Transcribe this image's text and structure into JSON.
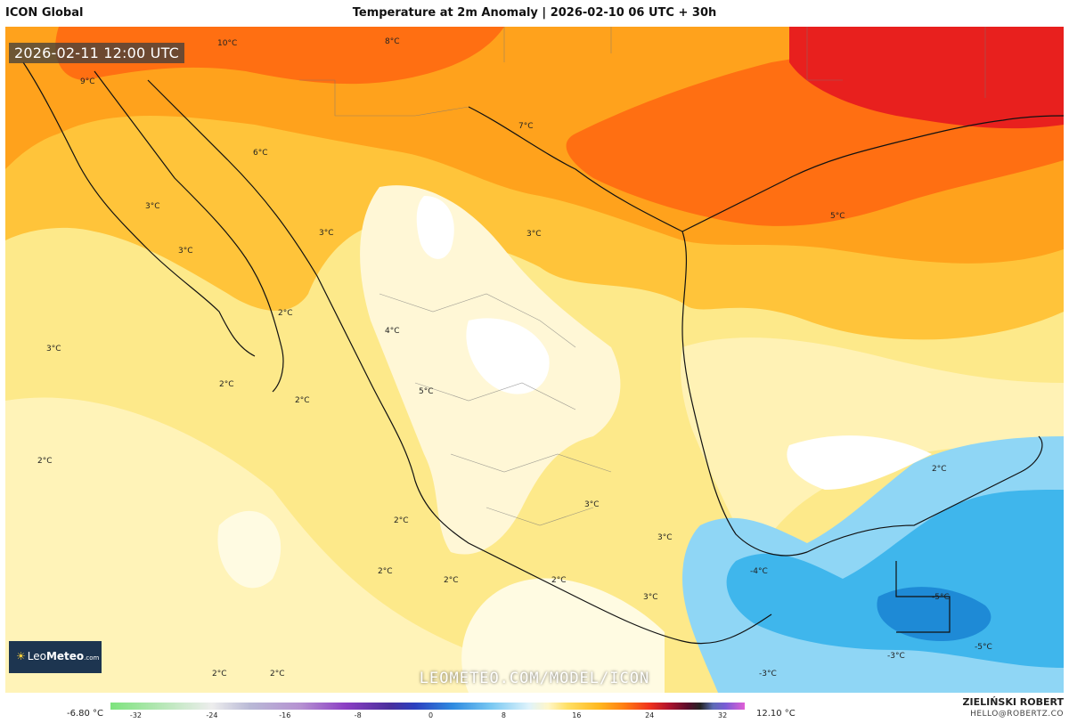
{
  "header": {
    "model_name": "ICON Global",
    "title": "Temperature at 2m Anomaly | 2026-02-10 06 UTC + 30h"
  },
  "map": {
    "valid_time": "2026-02-11 12:00 UTC",
    "watermark": "LEOMETEO.COM/MODEL/ICON",
    "logo": {
      "prefix": "Leo",
      "suffix": "Meteo",
      "tld": ".com"
    },
    "labels": [
      "10°C",
      "8°C",
      "9°C",
      "7°C",
      "6°C",
      "3°C",
      "3°C",
      "3°C",
      "3°C",
      "5°C",
      "2°C",
      "3°C",
      "4°C",
      "2°C",
      "2°C",
      "5°C",
      "2°C",
      "2°C",
      "3°C",
      "3°C",
      "2°C",
      "-4°C",
      "2°C",
      "2°C",
      "2°C",
      "3°C",
      "-5°C",
      "2°C",
      "2°C",
      "-3°C",
      "-5°C",
      "-3°C"
    ]
  },
  "legend": {
    "min_label": "-6.80 °C",
    "max_label": "12.10 °C",
    "ticks": [
      "-32",
      "-24",
      "-16",
      "-8",
      "0",
      "8",
      "16",
      "24",
      "32"
    ]
  },
  "footer": {
    "author": "ZIELIŃSKI ROBERT",
    "email": "HELLO@ROBERTZ.CO"
  },
  "colors": {
    "anomaly_cold": "#3fb6ec",
    "anomaly_neutral": "#fde98a",
    "anomaly_warm": "#ff8a14",
    "anomaly_hot": "#e8201e",
    "coastline": "#111111",
    "logo_bg": "#1d3550"
  }
}
